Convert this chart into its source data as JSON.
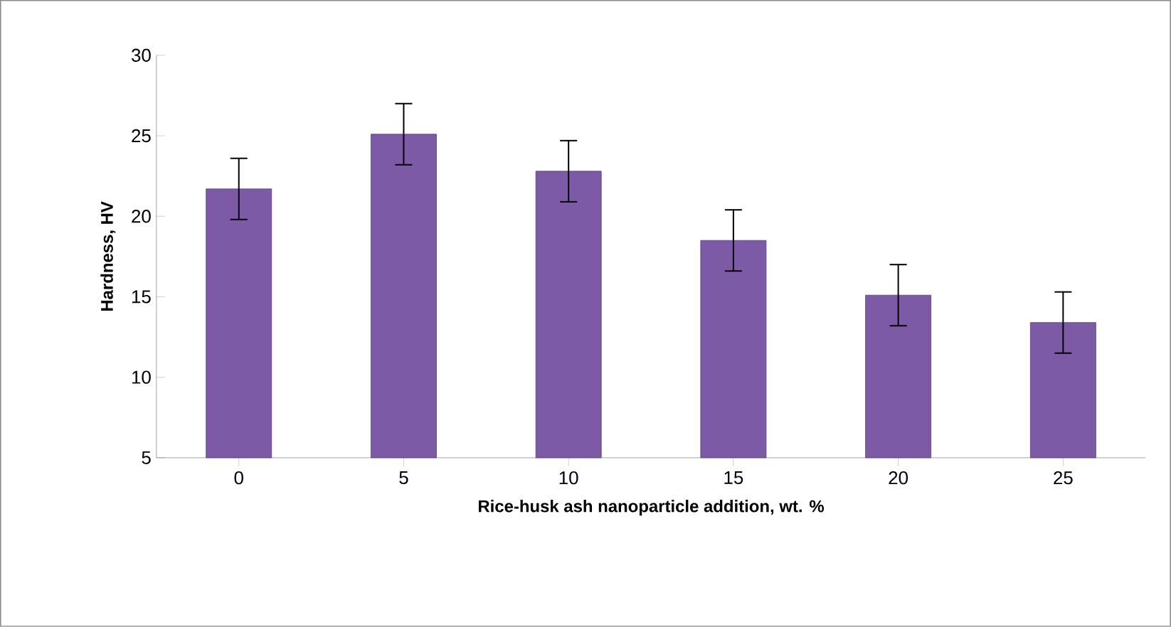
{
  "chart_data": {
    "type": "bar",
    "xlabel": "Rice-husk ash nanoparticle addition, wt. %",
    "ylabel": "Hardness, HV",
    "categories": [
      "0",
      "5",
      "10",
      "15",
      "20",
      "25"
    ],
    "values": [
      21.7,
      25.1,
      22.8,
      18.5,
      15.1,
      13.4
    ],
    "errors": [
      1.9,
      1.9,
      1.9,
      1.9,
      1.9,
      1.9
    ],
    "color": "#7d5aa6",
    "ylim": [
      5,
      30
    ],
    "yticks": [
      5,
      10,
      15,
      20,
      25,
      30
    ]
  }
}
